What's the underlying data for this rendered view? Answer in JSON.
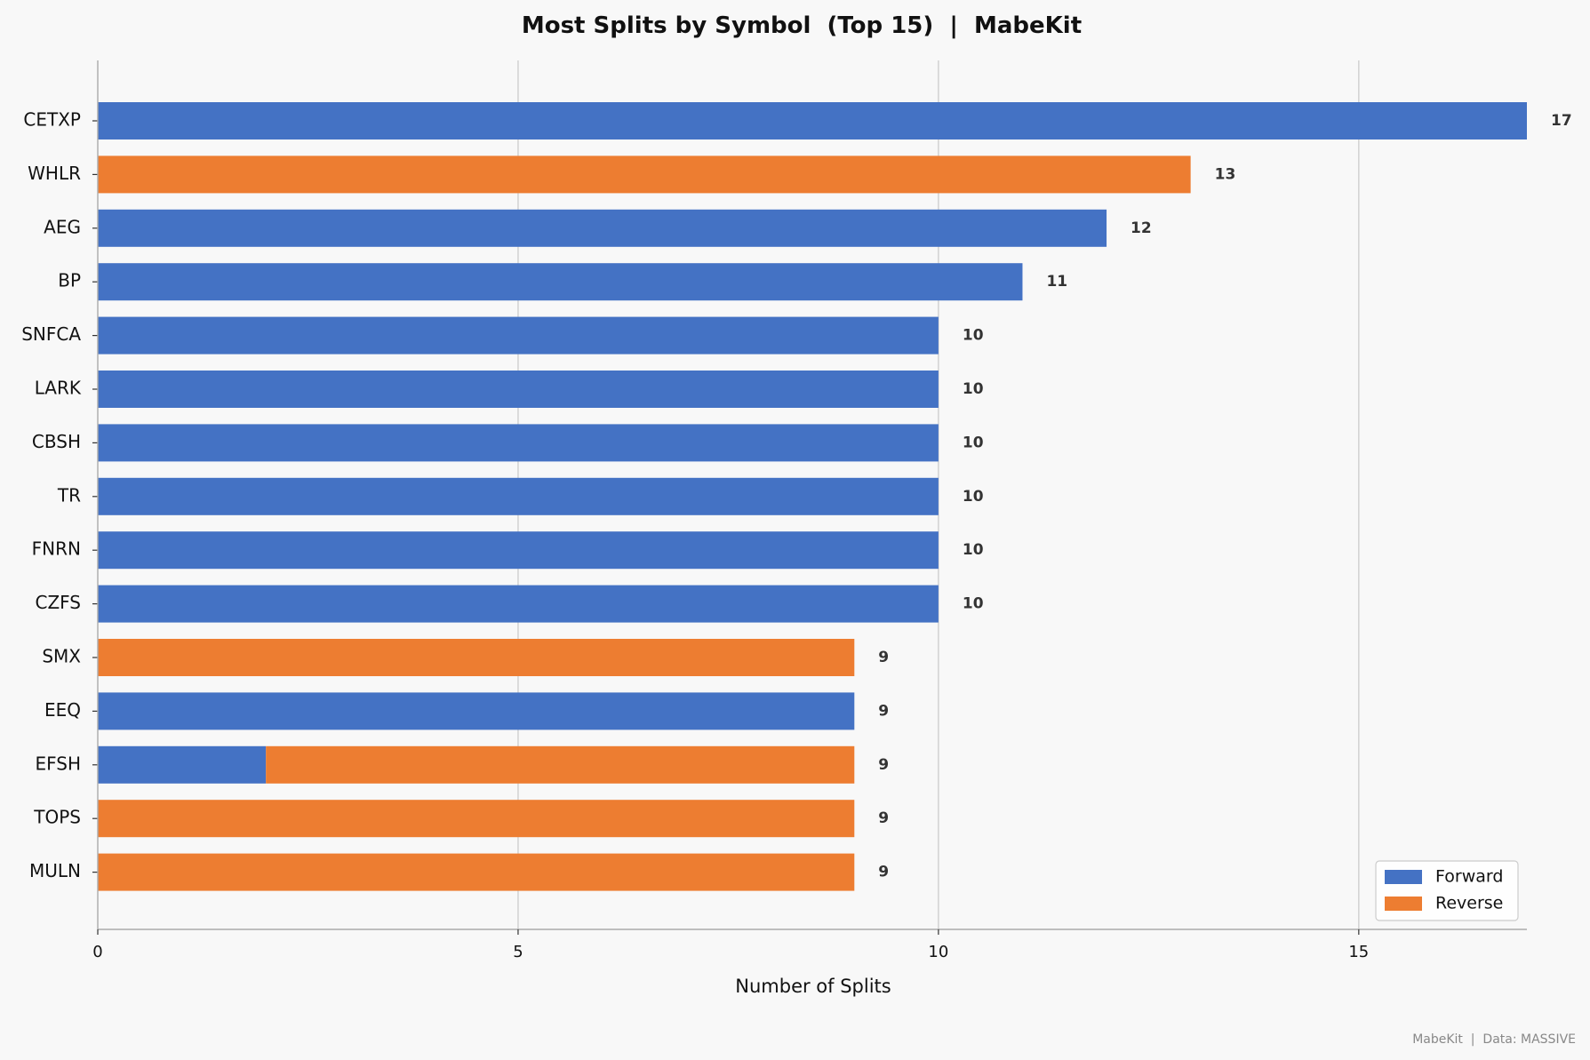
{
  "chart_data": {
    "type": "bar",
    "orientation": "horizontal",
    "stacked": true,
    "title": "Most Splits by Symbol  (Top 15)  |  MabeKit",
    "xlabel": "Number of Splits",
    "ylabel": "",
    "xlim": [
      0,
      17
    ],
    "xticks": [
      0,
      5,
      10,
      15
    ],
    "grid": "x",
    "legend_position": "lower-right",
    "categories": [
      "CETXP",
      "WHLR",
      "AEG",
      "BP",
      "SNFCA",
      "LARK",
      "CBSH",
      "TR",
      "FNRN",
      "CZFS",
      "SMX",
      "EEQ",
      "EFSH",
      "TOPS",
      "MULN"
    ],
    "series": [
      {
        "name": "Forward",
        "color": "#4472c4",
        "values": [
          17,
          0,
          12,
          11,
          10,
          10,
          10,
          10,
          10,
          10,
          0,
          9,
          2,
          0,
          0
        ]
      },
      {
        "name": "Reverse",
        "color": "#ed7d31",
        "values": [
          0,
          13,
          0,
          0,
          0,
          0,
          0,
          0,
          0,
          0,
          9,
          0,
          7,
          9,
          9
        ]
      }
    ],
    "totals": [
      17,
      13,
      12,
      11,
      10,
      10,
      10,
      10,
      10,
      10,
      9,
      9,
      9,
      9,
      9
    ],
    "footer": "MabeKit  |  Data: MASSIVE"
  }
}
